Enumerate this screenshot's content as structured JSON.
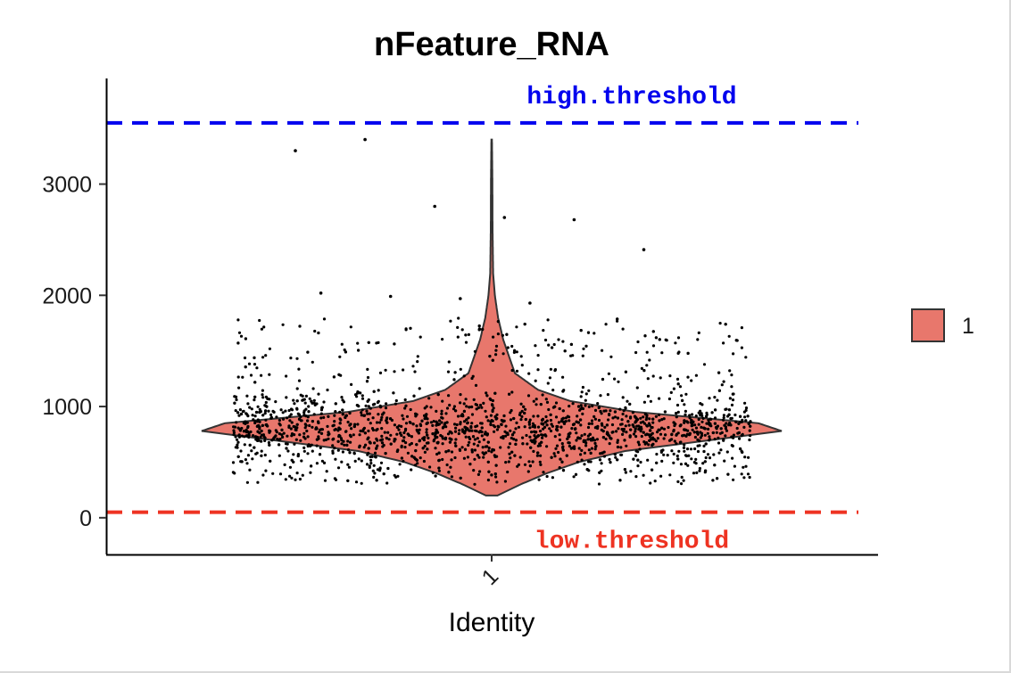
{
  "chart_data": {
    "type": "violin",
    "title": "nFeature_RNA",
    "xlabel": "Identity",
    "ylabel": "",
    "categories": [
      "1"
    ],
    "ylim": [
      -330,
      3950
    ],
    "yticks": [
      0,
      1000,
      2000,
      3000
    ],
    "grid": false,
    "fill_color": "#e8776c",
    "legend": {
      "position": "right",
      "entries": [
        {
          "name": "1",
          "color": "#e8776c"
        }
      ]
    },
    "distribution": {
      "min": 200,
      "max": 3400,
      "mode": 800,
      "profile": [
        [
          200,
          0.02
        ],
        [
          300,
          0.1
        ],
        [
          400,
          0.19
        ],
        [
          500,
          0.3
        ],
        [
          600,
          0.46
        ],
        [
          700,
          0.76
        ],
        [
          780,
          1.0
        ],
        [
          850,
          0.92
        ],
        [
          950,
          0.5
        ],
        [
          1050,
          0.27
        ],
        [
          1150,
          0.16
        ],
        [
          1300,
          0.08
        ],
        [
          1450,
          0.06
        ],
        [
          1600,
          0.04
        ],
        [
          1800,
          0.022
        ],
        [
          2000,
          0.011
        ],
        [
          2200,
          0.005
        ],
        [
          2600,
          0.003
        ],
        [
          3000,
          0.0025
        ],
        [
          3400,
          0.001
        ]
      ]
    },
    "reference_lines": [
      {
        "name": "high.threshold",
        "value": 3550,
        "color": "#0000ee",
        "style": "dashed"
      },
      {
        "name": "low.threshold",
        "value": 50,
        "color": "#ee3322",
        "style": "dashed"
      }
    ],
    "outlier_points": [
      {
        "y": 3300
      },
      {
        "y": 3400
      },
      {
        "y": 2800
      },
      {
        "y": 2700
      },
      {
        "y": 2680
      },
      {
        "y": 2410
      },
      {
        "y": 2020
      },
      {
        "y": 1990
      },
      {
        "y": 1970
      },
      {
        "y": 1930
      }
    ]
  }
}
